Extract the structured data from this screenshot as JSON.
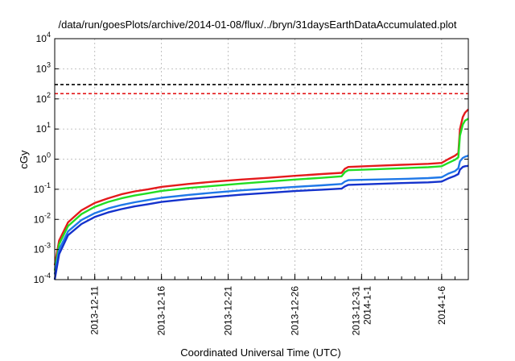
{
  "chart_data": {
    "type": "line",
    "title": "/data/run/goesPlots/archive/2014-01-08/flux/../bryn/31daysEarthDataAccumulated.plot",
    "xlabel": "Coordinated Universal Time (UTC)",
    "ylabel": "cGy",
    "yscale": "log",
    "ylim": [
      0.0001,
      10000
    ],
    "xlim": [
      "2013-12-08",
      "2014-01-08"
    ],
    "grid": true,
    "legend": "none",
    "y_ticks": [
      {
        "value": 0.0001,
        "base": "10",
        "exp": "-4"
      },
      {
        "value": 0.001,
        "base": "10",
        "exp": "-3"
      },
      {
        "value": 0.01,
        "base": "10",
        "exp": "-2"
      },
      {
        "value": 0.1,
        "base": "10",
        "exp": "-1"
      },
      {
        "value": 1,
        "base": "10",
        "exp": "0"
      },
      {
        "value": 10,
        "base": "10",
        "exp": "1"
      },
      {
        "value": 100,
        "base": "10",
        "exp": "2"
      },
      {
        "value": 1000,
        "base": "10",
        "exp": "3"
      },
      {
        "value": 10000,
        "base": "10",
        "exp": "4"
      }
    ],
    "x_ticks": [
      {
        "date": "2013-12-11",
        "labels": [
          "2013-12-11"
        ]
      },
      {
        "date": "2013-12-16",
        "labels": [
          "2013-12-16"
        ]
      },
      {
        "date": "2013-12-21",
        "labels": [
          "2013-12-21"
        ]
      },
      {
        "date": "2013-12-26",
        "labels": [
          "2013-12-26"
        ]
      },
      {
        "date": "2013-12-31",
        "labels": [
          "2013-12-31",
          "2014-1-1"
        ]
      },
      {
        "date": "2014-01-06",
        "labels": [
          "2014-1-6"
        ]
      }
    ],
    "reference_lines": [
      {
        "value": 300,
        "color": "#000000",
        "style": "dashed"
      },
      {
        "value": 150,
        "color": "#e41a1c",
        "style": "dashed"
      }
    ],
    "series": [
      {
        "color": "#e41a1c",
        "points": [
          [
            "2013-12-08",
            0.0003
          ],
          [
            "2013-12-08T08:00",
            0.002
          ],
          [
            "2013-12-09",
            0.008
          ],
          [
            "2013-12-10",
            0.02
          ],
          [
            "2013-12-11",
            0.035
          ],
          [
            "2013-12-12",
            0.05
          ],
          [
            "2013-12-13",
            0.068
          ],
          [
            "2013-12-14",
            0.085
          ],
          [
            "2013-12-15",
            0.1
          ],
          [
            "2013-12-16",
            0.12
          ],
          [
            "2013-12-18",
            0.15
          ],
          [
            "2013-12-20",
            0.18
          ],
          [
            "2013-12-22",
            0.21
          ],
          [
            "2013-12-24",
            0.24
          ],
          [
            "2013-12-26",
            0.28
          ],
          [
            "2013-12-28",
            0.32
          ],
          [
            "2013-12-29T12:00",
            0.35
          ],
          [
            "2013-12-29T18:00",
            0.48
          ],
          [
            "2013-12-30",
            0.55
          ],
          [
            "2014-01-01",
            0.6
          ],
          [
            "2014-01-03",
            0.65
          ],
          [
            "2014-01-05",
            0.7
          ],
          [
            "2014-01-06",
            0.75
          ],
          [
            "2014-01-06T12:00",
            1.0
          ],
          [
            "2014-01-07",
            1.3
          ],
          [
            "2014-01-07T06:00",
            1.6
          ],
          [
            "2014-01-07T09:00",
            10
          ],
          [
            "2014-01-07T14:00",
            25
          ],
          [
            "2014-01-07T18:00",
            35
          ],
          [
            "2014-01-08",
            45
          ]
        ]
      },
      {
        "color": "#22dd22",
        "points": [
          [
            "2013-12-08",
            0.0002
          ],
          [
            "2013-12-08T08:00",
            0.0015
          ],
          [
            "2013-12-09",
            0.006
          ],
          [
            "2013-12-10",
            0.015
          ],
          [
            "2013-12-11",
            0.026
          ],
          [
            "2013-12-12",
            0.038
          ],
          [
            "2013-12-13",
            0.05
          ],
          [
            "2013-12-14",
            0.062
          ],
          [
            "2013-12-15",
            0.074
          ],
          [
            "2013-12-16",
            0.088
          ],
          [
            "2013-12-18",
            0.11
          ],
          [
            "2013-12-20",
            0.13
          ],
          [
            "2013-12-22",
            0.155
          ],
          [
            "2013-12-24",
            0.18
          ],
          [
            "2013-12-26",
            0.21
          ],
          [
            "2013-12-28",
            0.24
          ],
          [
            "2013-12-29T12:00",
            0.27
          ],
          [
            "2013-12-29T18:00",
            0.37
          ],
          [
            "2013-12-30",
            0.43
          ],
          [
            "2014-01-01",
            0.46
          ],
          [
            "2014-01-03",
            0.5
          ],
          [
            "2014-01-05",
            0.54
          ],
          [
            "2014-01-06",
            0.58
          ],
          [
            "2014-01-06T12:00",
            0.75
          ],
          [
            "2014-01-07",
            0.95
          ],
          [
            "2014-01-07T06:00",
            1.15
          ],
          [
            "2014-01-07T09:00",
            6
          ],
          [
            "2014-01-07T14:00",
            14
          ],
          [
            "2014-01-07T18:00",
            19
          ],
          [
            "2014-01-08",
            22
          ]
        ]
      },
      {
        "color": "#1f78e8",
        "points": [
          [
            "2013-12-08",
            0.00015
          ],
          [
            "2013-12-08T08:00",
            0.001
          ],
          [
            "2013-12-09",
            0.004
          ],
          [
            "2013-12-10",
            0.0095
          ],
          [
            "2013-12-11",
            0.016
          ],
          [
            "2013-12-12",
            0.023
          ],
          [
            "2013-12-13",
            0.03
          ],
          [
            "2013-12-14",
            0.037
          ],
          [
            "2013-12-15",
            0.044
          ],
          [
            "2013-12-16",
            0.052
          ],
          [
            "2013-12-18",
            0.065
          ],
          [
            "2013-12-20",
            0.078
          ],
          [
            "2013-12-22",
            0.092
          ],
          [
            "2013-12-24",
            0.105
          ],
          [
            "2013-12-26",
            0.12
          ],
          [
            "2013-12-28",
            0.135
          ],
          [
            "2013-12-29T12:00",
            0.15
          ],
          [
            "2013-12-29T18:00",
            0.18
          ],
          [
            "2013-12-30",
            0.2
          ],
          [
            "2014-01-01",
            0.21
          ],
          [
            "2014-01-03",
            0.22
          ],
          [
            "2014-01-05",
            0.235
          ],
          [
            "2014-01-06",
            0.25
          ],
          [
            "2014-01-06T12:00",
            0.33
          ],
          [
            "2014-01-07",
            0.4
          ],
          [
            "2014-01-07T06:00",
            0.5
          ],
          [
            "2014-01-07T09:00",
            0.85
          ],
          [
            "2014-01-07T14:00",
            1.1
          ],
          [
            "2014-01-07T18:00",
            1.2
          ],
          [
            "2014-01-08",
            1.3
          ]
        ]
      },
      {
        "color": "#1432cc",
        "points": [
          [
            "2013-12-08",
            0.0001
          ],
          [
            "2013-12-08T08:00",
            0.0007
          ],
          [
            "2013-12-09",
            0.003
          ],
          [
            "2013-12-10",
            0.007
          ],
          [
            "2013-12-11",
            0.012
          ],
          [
            "2013-12-12",
            0.017
          ],
          [
            "2013-12-13",
            0.022
          ],
          [
            "2013-12-14",
            0.027
          ],
          [
            "2013-12-15",
            0.032
          ],
          [
            "2013-12-16",
            0.038
          ],
          [
            "2013-12-18",
            0.047
          ],
          [
            "2013-12-20",
            0.056
          ],
          [
            "2013-12-22",
            0.066
          ],
          [
            "2013-12-24",
            0.076
          ],
          [
            "2013-12-26",
            0.087
          ],
          [
            "2013-12-28",
            0.097
          ],
          [
            "2013-12-29T12:00",
            0.105
          ],
          [
            "2013-12-29T18:00",
            0.125
          ],
          [
            "2013-12-30",
            0.14
          ],
          [
            "2014-01-01",
            0.15
          ],
          [
            "2014-01-03",
            0.16
          ],
          [
            "2014-01-05",
            0.17
          ],
          [
            "2014-01-06",
            0.18
          ],
          [
            "2014-01-06T12:00",
            0.23
          ],
          [
            "2014-01-07",
            0.28
          ],
          [
            "2014-01-07T06:00",
            0.32
          ],
          [
            "2014-01-07T09:00",
            0.45
          ],
          [
            "2014-01-07T14:00",
            0.55
          ],
          [
            "2014-01-07T18:00",
            0.58
          ],
          [
            "2014-01-08",
            0.6
          ]
        ]
      }
    ]
  }
}
